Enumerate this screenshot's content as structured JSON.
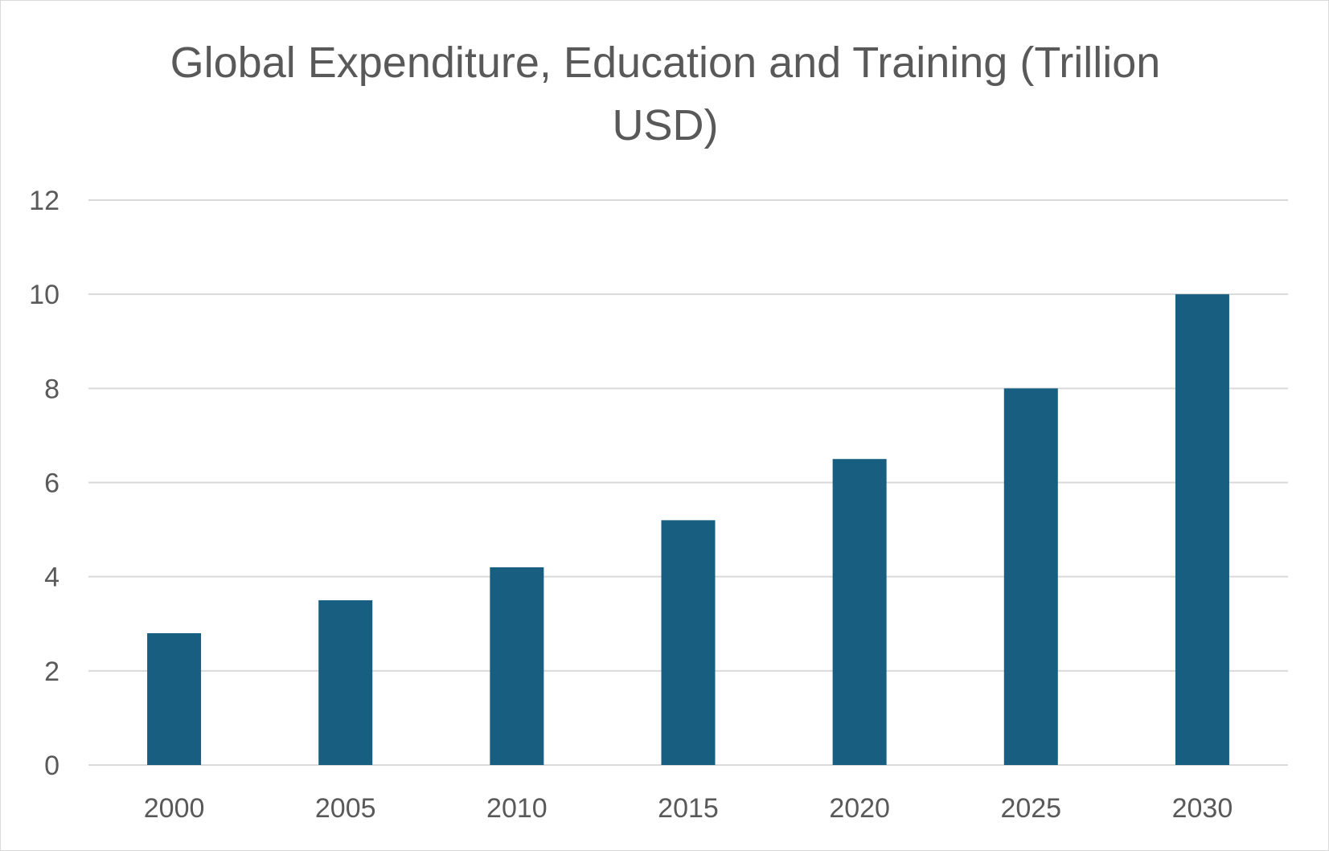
{
  "chart_data": {
    "type": "bar",
    "title": "Global Expenditure, Education and Training (Trillion USD)",
    "categories": [
      "2000",
      "2005",
      "2010",
      "2015",
      "2020",
      "2025",
      "2030"
    ],
    "values": [
      2.8,
      3.5,
      4.2,
      5.2,
      6.5,
      8.0,
      10.0
    ],
    "xlabel": "",
    "ylabel": "",
    "ylim": [
      0,
      12
    ],
    "yticks": [
      "0",
      "2",
      "4",
      "6",
      "8",
      "10",
      "12"
    ],
    "grid": true,
    "legend": "none",
    "colors": {
      "bar": "#175E80",
      "grid": "#D9D9D9",
      "text": "#595959"
    }
  }
}
